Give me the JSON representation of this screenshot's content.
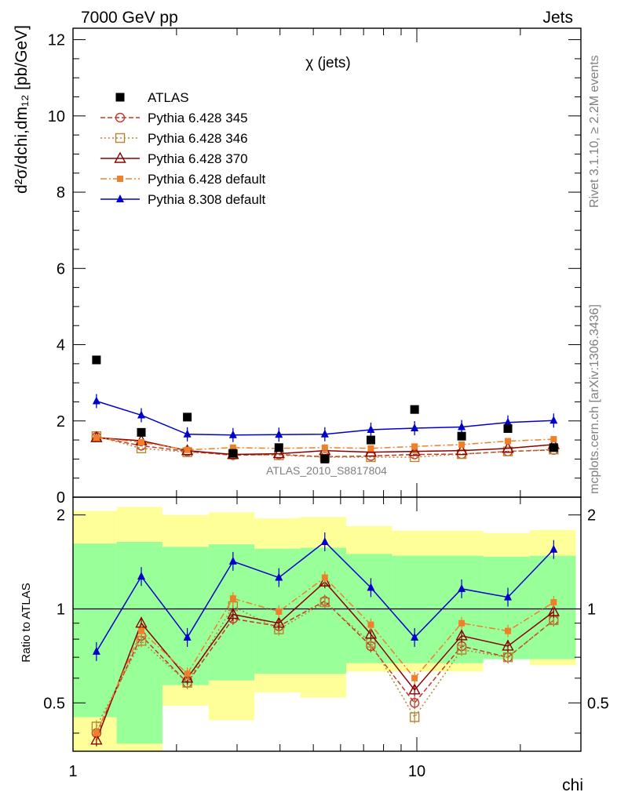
{
  "chart_data": {
    "type": "scatter",
    "header_left": "7000 GeV pp",
    "header_right": "Jets",
    "title": "χ (jets)",
    "analysis_label": "ATLAS_2010_S8817804",
    "side_label_top": "Rivet 3.1.10, ≥ 2.2M events",
    "side_label_bottom": "mcplots.cern.ch [arXiv:1306.3436]",
    "ylabel_main": "d²σ/dchi,dm₁₂ [pb/GeV]",
    "ylabel_ratio": "Ratio to ATLAS",
    "xlabel": "chi",
    "xscale": "log",
    "xlim": [
      1,
      30
    ],
    "ylim_main": [
      0,
      12.3
    ],
    "ylim_ratio": [
      0.35,
      2.28
    ],
    "x_ticks": [
      {
        "value": 1,
        "label": "1"
      },
      {
        "value": 10,
        "label": "10"
      }
    ],
    "y_ticks_main": [
      {
        "value": 0,
        "label": "0"
      },
      {
        "value": 2,
        "label": "2"
      },
      {
        "value": 4,
        "label": "4"
      },
      {
        "value": 6,
        "label": "6"
      },
      {
        "value": 8,
        "label": "8"
      },
      {
        "value": 10,
        "label": "10"
      },
      {
        "value": 12,
        "label": "12"
      }
    ],
    "y_ticks_ratio": [
      {
        "value": 0.5,
        "label": "0.5"
      },
      {
        "value": 1,
        "label": "1"
      },
      {
        "value": 2,
        "label": "2"
      }
    ],
    "bin_edges": [
      1.0,
      1.34,
      1.82,
      2.48,
      3.37,
      4.58,
      6.23,
      8.47,
      11.5,
      15.6,
      21.3,
      29.0
    ],
    "x": [
      1.17,
      1.58,
      2.15,
      2.92,
      3.97,
      5.4,
      7.35,
      9.85,
      13.5,
      18.4,
      25.0
    ],
    "data": {
      "name": "ATLAS",
      "color": "#000000",
      "values": [
        3.6,
        1.7,
        2.1,
        1.15,
        1.3,
        1.0,
        1.5,
        2.3,
        1.6,
        1.8,
        1.3
      ]
    },
    "band_outer": [
      [
        0.35,
        2.06
      ],
      [
        0.35,
        2.12
      ],
      [
        0.49,
        2.0
      ],
      [
        0.44,
        2.04
      ],
      [
        0.54,
        1.95
      ],
      [
        0.52,
        1.97
      ],
      [
        0.63,
        1.84
      ],
      [
        0.63,
        1.78
      ],
      [
        0.63,
        1.78
      ],
      [
        0.7,
        1.75
      ],
      [
        0.66,
        1.79
      ]
    ],
    "band_inner": [
      [
        0.45,
        1.62
      ],
      [
        0.37,
        1.64
      ],
      [
        0.57,
        1.58
      ],
      [
        0.59,
        1.61
      ],
      [
        0.62,
        1.56
      ],
      [
        0.62,
        1.57
      ],
      [
        0.67,
        1.5
      ],
      [
        0.67,
        1.48
      ],
      [
        0.67,
        1.48
      ],
      [
        0.69,
        1.47
      ],
      [
        0.69,
        1.48
      ]
    ],
    "series": [
      {
        "name": "Pythia 6.428 345",
        "color": "#c0392b",
        "dash": "6,3",
        "marker": "circle-open",
        "values": [
          1.58,
          1.35,
          1.2,
          1.1,
          1.12,
          1.06,
          1.08,
          1.12,
          1.13,
          1.2,
          1.24
        ],
        "ratio": [
          0.4,
          0.82,
          0.58,
          0.93,
          0.88,
          1.06,
          0.76,
          0.5,
          0.76,
          0.7,
          0.92
        ]
      },
      {
        "name": "Pythia 6.428 346",
        "color": "#b5862e",
        "dash": "2,3",
        "marker": "square-open",
        "values": [
          1.6,
          1.28,
          1.18,
          1.12,
          1.1,
          1.05,
          1.05,
          1.05,
          1.13,
          1.2,
          1.25
        ],
        "ratio": [
          0.42,
          0.79,
          0.58,
          1.02,
          0.86,
          1.05,
          0.78,
          0.45,
          0.74,
          0.7,
          0.92
        ]
      },
      {
        "name": "Pythia 6.428 370",
        "color": "#8b0000",
        "dash": "",
        "marker": "triangle-open",
        "values": [
          1.56,
          1.48,
          1.22,
          1.12,
          1.14,
          1.22,
          1.18,
          1.2,
          1.22,
          1.28,
          1.38
        ],
        "ratio": [
          0.38,
          0.9,
          0.6,
          0.96,
          0.9,
          1.22,
          0.83,
          0.55,
          0.82,
          0.76,
          0.98
        ]
      },
      {
        "name": "Pythia 6.428 default",
        "color": "#f07f2a",
        "dash": "8,3,2,3",
        "marker": "square-filled",
        "values": [
          1.56,
          1.44,
          1.24,
          1.3,
          1.28,
          1.3,
          1.28,
          1.33,
          1.38,
          1.47,
          1.52
        ],
        "ratio": [
          0.4,
          0.85,
          0.62,
          1.08,
          0.98,
          1.26,
          0.89,
          0.6,
          0.9,
          0.85,
          1.05
        ]
      },
      {
        "name": "Pythia 8.308 default",
        "color": "#0000cc",
        "dash": "",
        "marker": "triangle-filled",
        "values": [
          2.52,
          2.15,
          1.65,
          1.63,
          1.64,
          1.65,
          1.77,
          1.81,
          1.84,
          1.96,
          2.01
        ],
        "ratio": [
          0.73,
          1.27,
          0.81,
          1.42,
          1.26,
          1.64,
          1.17,
          0.81,
          1.16,
          1.09,
          1.55
        ]
      }
    ],
    "legend_position": "top-left",
    "grid": false
  }
}
